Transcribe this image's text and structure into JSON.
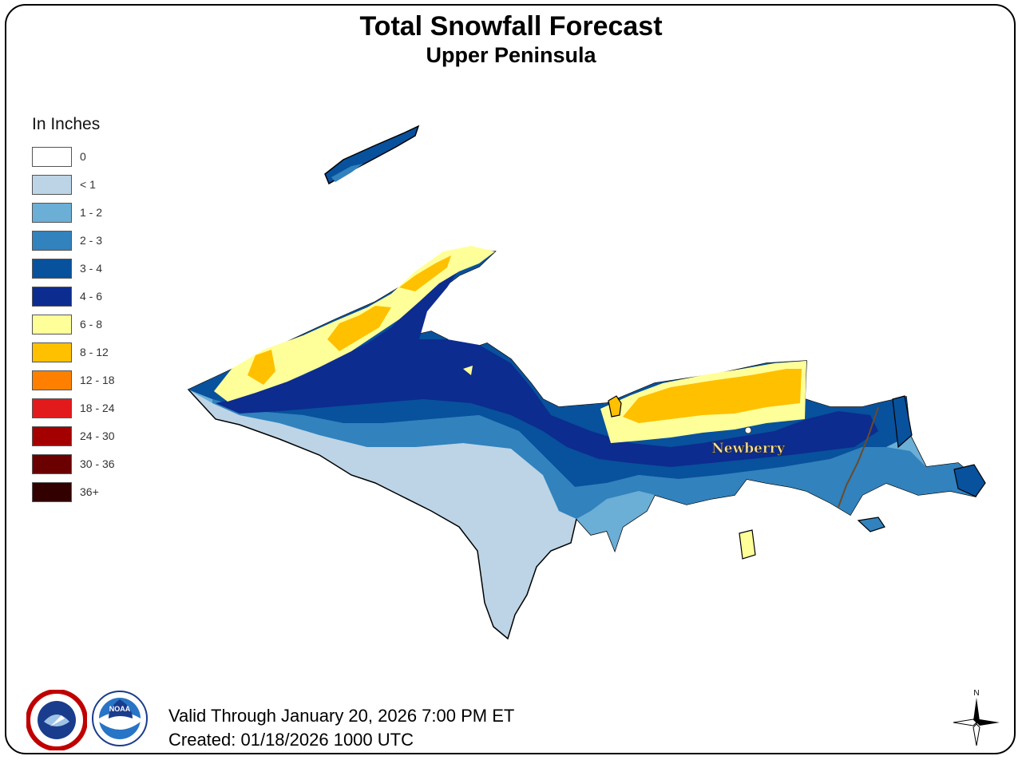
{
  "title": "Total Snowfall Forecast",
  "subtitle": "Upper Peninsula",
  "legend": {
    "title": "In Inches",
    "items": [
      {
        "label": "0",
        "color": "#ffffff"
      },
      {
        "label": "< 1",
        "color": "#bcd4e6"
      },
      {
        "label": "1 - 2",
        "color": "#6baed6"
      },
      {
        "label": "2 - 3",
        "color": "#3182bd"
      },
      {
        "label": "3 - 4",
        "color": "#08519c"
      },
      {
        "label": "4 - 6",
        "color": "#0c2c8f"
      },
      {
        "label": "6 - 8",
        "color": "#ffff99"
      },
      {
        "label": "8 - 12",
        "color": "#ffc000"
      },
      {
        "label": "12 - 18",
        "color": "#ff8000"
      },
      {
        "label": "18 - 24",
        "color": "#e31a1c"
      },
      {
        "label": "24 - 30",
        "color": "#a50000"
      },
      {
        "label": "30 - 36",
        "color": "#6b0000"
      },
      {
        "label": "36+",
        "color": "#330000"
      }
    ]
  },
  "map": {
    "city_label": "Newberry"
  },
  "footer": {
    "valid": "Valid Through January 20, 2026 7:00 PM ET",
    "created": "Created: 01/18/2026 1000 UTC"
  },
  "logos": {
    "nws_ring_text": "NATIONAL WEATHER SERVICE",
    "noaa_text": "NOAA"
  },
  "compass_label": "N"
}
